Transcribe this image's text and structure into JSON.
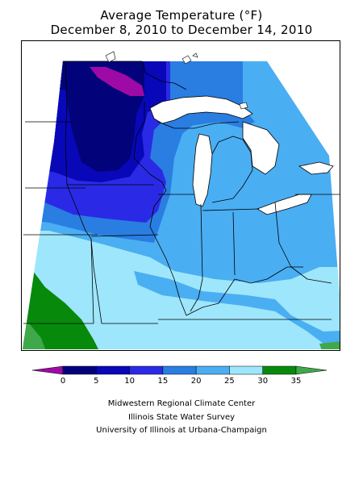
{
  "title": {
    "line1": "Average Temperature (°F)",
    "line2": "December 8, 2010 to December 14, 2010"
  },
  "legend": {
    "ticks": [
      "0",
      "5",
      "10",
      "15",
      "20",
      "25",
      "30",
      "35"
    ],
    "bins": [
      {
        "range": "<0",
        "color": "#9e0aa6"
      },
      {
        "range": "0-5",
        "color": "#02027a"
      },
      {
        "range": "5-10",
        "color": "#0808b8"
      },
      {
        "range": "10-15",
        "color": "#2a2ae6"
      },
      {
        "range": "15-20",
        "color": "#2a7de1"
      },
      {
        "range": "20-25",
        "color": "#4aaef2"
      },
      {
        "range": "25-30",
        "color": "#9ee6fb"
      },
      {
        "range": "30-35",
        "color": "#078a0c"
      },
      {
        "range": ">35",
        "color": "#3fa84a"
      }
    ]
  },
  "credits": [
    "Midwestern Regional Climate Center",
    "Illinois State Water Survey",
    "University of Illinois at Urbana-Champaign"
  ]
}
